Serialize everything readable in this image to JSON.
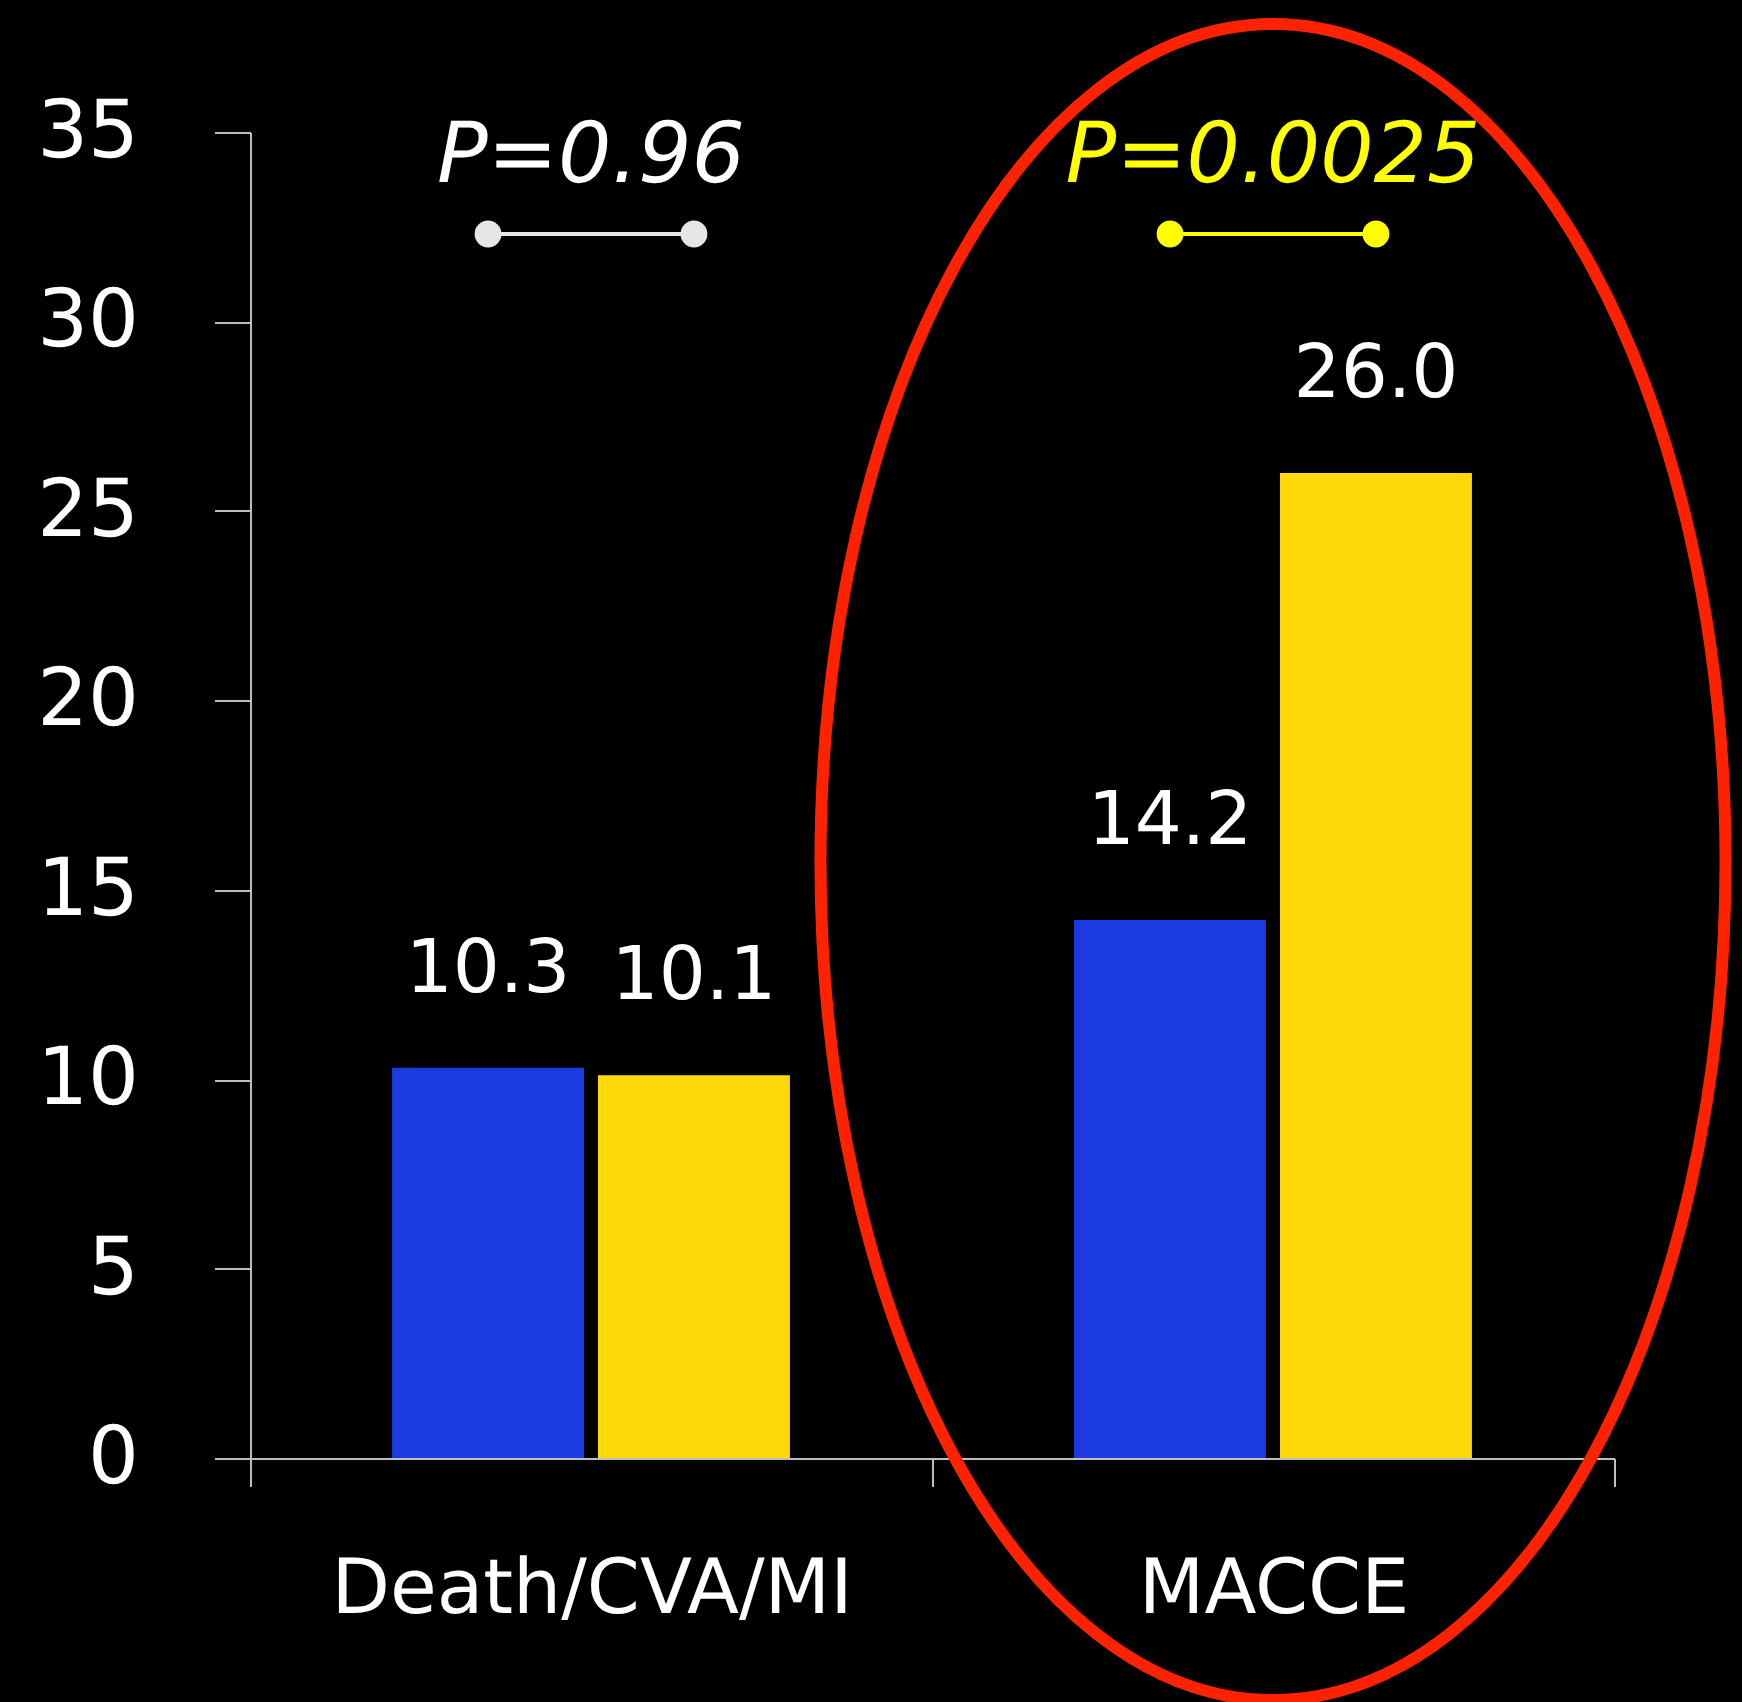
{
  "chart_data": {
    "type": "bar",
    "categories": [
      "Death/CVA/MI",
      "MACCE"
    ],
    "series": [
      {
        "color": "#1b3ae0",
        "values": [
          10.3,
          14.2
        ],
        "value_labels": [
          "10.3",
          "14.2"
        ]
      },
      {
        "color": "#ffd90a",
        "values": [
          10.1,
          26.0
        ],
        "value_labels": [
          "10.1",
          "26.0"
        ]
      }
    ],
    "ylim": [
      0,
      35
    ],
    "yticks": [
      0,
      5,
      10,
      15,
      20,
      25,
      30,
      35
    ],
    "grid": false,
    "legend": false,
    "annotations": [
      "P=0.96",
      "P=0.0025"
    ]
  }
}
